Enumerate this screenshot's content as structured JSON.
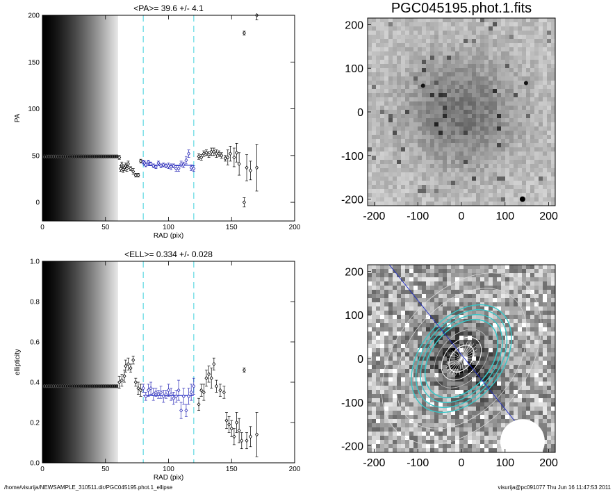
{
  "footer": {
    "left": "/home/visurija/NEWSAMPLE_310511.dir/PGC045195.phot.1_ellipse",
    "right": "visurija@pc091077  Thu Jun 16 11:47:53 2011"
  },
  "chart_data": [
    {
      "id": "pa",
      "type": "scatter",
      "title": "<PA>=  39.6 +/-   4.1",
      "xlabel": "RAD (pix)",
      "ylabel": "PA",
      "xlim": [
        0,
        200
      ],
      "ylim": [
        -20,
        200
      ],
      "xticks": [
        0,
        50,
        100,
        150,
        200
      ],
      "yticks": [
        0,
        50,
        100,
        150,
        200
      ],
      "grid": false,
      "inner_fill_until": 60,
      "inner_value": 49,
      "vlines": [
        80,
        120
      ],
      "fit": {
        "x": [
          80,
          120
        ],
        "y": 39.6
      },
      "points": [
        [
          61,
          48,
          2
        ],
        [
          62,
          36,
          3
        ],
        [
          63,
          40,
          3
        ],
        [
          64,
          35,
          3
        ],
        [
          65,
          37,
          3
        ],
        [
          66,
          39,
          3
        ],
        [
          67,
          36,
          3
        ],
        [
          68,
          41,
          3
        ],
        [
          70,
          36,
          2
        ],
        [
          72,
          33,
          3
        ],
        [
          74,
          29,
          2
        ],
        [
          76,
          29,
          2
        ],
        [
          78,
          44,
          2
        ],
        [
          80,
          43,
          2
        ],
        [
          81,
          42,
          2
        ],
        [
          82,
          40,
          2
        ],
        [
          84,
          43,
          2
        ],
        [
          85,
          41,
          2
        ],
        [
          86,
          41,
          2
        ],
        [
          88,
          39,
          2
        ],
        [
          90,
          38,
          2
        ],
        [
          92,
          42,
          2
        ],
        [
          94,
          39,
          2
        ],
        [
          96,
          40,
          2
        ],
        [
          98,
          39,
          2
        ],
        [
          100,
          39,
          3
        ],
        [
          102,
          38,
          3
        ],
        [
          104,
          39,
          2
        ],
        [
          106,
          36,
          3
        ],
        [
          108,
          36,
          3
        ],
        [
          110,
          41,
          3
        ],
        [
          112,
          40,
          3
        ],
        [
          114,
          45,
          4
        ],
        [
          116,
          52,
          4
        ],
        [
          118,
          37,
          3
        ],
        [
          120,
          36,
          3
        ],
        [
          124,
          49,
          3
        ],
        [
          126,
          48,
          3
        ],
        [
          128,
          52,
          3
        ],
        [
          130,
          53,
          3
        ],
        [
          132,
          51,
          3
        ],
        [
          134,
          54,
          4
        ],
        [
          136,
          54,
          4
        ],
        [
          138,
          52,
          4
        ],
        [
          140,
          52,
          3
        ],
        [
          142,
          50,
          3
        ],
        [
          145,
          47,
          3
        ],
        [
          147,
          48,
          8
        ],
        [
          149,
          52,
          8
        ],
        [
          152,
          48,
          10
        ],
        [
          154,
          53,
          10
        ],
        [
          156,
          41,
          12
        ],
        [
          160,
          0,
          5
        ],
        [
          162,
          37,
          14
        ],
        [
          165,
          34,
          10
        ],
        [
          170,
          37,
          25
        ],
        [
          160,
          181,
          2
        ],
        [
          170,
          200,
          5
        ]
      ]
    },
    {
      "id": "ell",
      "type": "scatter",
      "title": "<ELL>= 0.334 +/-  0.028",
      "xlabel": "RAD (pix)",
      "ylabel": "ellipticity",
      "xlim": [
        0,
        200
      ],
      "ylim": [
        0,
        1.0
      ],
      "xticks": [
        0,
        50,
        100,
        150,
        200
      ],
      "yticks": [
        0.0,
        0.2,
        0.4,
        0.6,
        0.8,
        1.0
      ],
      "grid": false,
      "inner_fill_until": 60,
      "inner_value": 0.38,
      "vlines": [
        80,
        120
      ],
      "fit": {
        "x": [
          80,
          120
        ],
        "y": 0.334
      },
      "points": [
        [
          61,
          0.4,
          0.03
        ],
        [
          63,
          0.41,
          0.03
        ],
        [
          65,
          0.43,
          0.03
        ],
        [
          66,
          0.48,
          0.03
        ],
        [
          68,
          0.49,
          0.03
        ],
        [
          70,
          0.47,
          0.02
        ],
        [
          72,
          0.51,
          0.02
        ],
        [
          74,
          0.4,
          0.02
        ],
        [
          76,
          0.37,
          0.03
        ],
        [
          78,
          0.36,
          0.03
        ],
        [
          80,
          0.37,
          0.02
        ],
        [
          82,
          0.33,
          0.02
        ],
        [
          84,
          0.36,
          0.03
        ],
        [
          86,
          0.37,
          0.03
        ],
        [
          88,
          0.34,
          0.03
        ],
        [
          90,
          0.35,
          0.02
        ],
        [
          92,
          0.34,
          0.02
        ],
        [
          94,
          0.35,
          0.03
        ],
        [
          96,
          0.33,
          0.03
        ],
        [
          98,
          0.34,
          0.02
        ],
        [
          100,
          0.36,
          0.03
        ],
        [
          102,
          0.34,
          0.03
        ],
        [
          104,
          0.32,
          0.03
        ],
        [
          106,
          0.33,
          0.03
        ],
        [
          108,
          0.36,
          0.05
        ],
        [
          110,
          0.26,
          0.04
        ],
        [
          112,
          0.33,
          0.04
        ],
        [
          114,
          0.26,
          0.03
        ],
        [
          116,
          0.33,
          0.04
        ],
        [
          118,
          0.35,
          0.04
        ],
        [
          120,
          0.38,
          0.04
        ],
        [
          124,
          0.29,
          0.03
        ],
        [
          126,
          0.36,
          0.03
        ],
        [
          128,
          0.35,
          0.04
        ],
        [
          130,
          0.42,
          0.04
        ],
        [
          132,
          0.44,
          0.04
        ],
        [
          134,
          0.42,
          0.05
        ],
        [
          136,
          0.49,
          0.03
        ],
        [
          138,
          0.38,
          0.03
        ],
        [
          141,
          0.36,
          0.03
        ],
        [
          144,
          0.35,
          0.03
        ],
        [
          146,
          0.21,
          0.04
        ],
        [
          148,
          0.19,
          0.04
        ],
        [
          150,
          0.17,
          0.04
        ],
        [
          152,
          0.13,
          0.04
        ],
        [
          154,
          0.2,
          0.05
        ],
        [
          156,
          0.16,
          0.06
        ],
        [
          158,
          0.11,
          0.04
        ],
        [
          162,
          0.11,
          0.04
        ],
        [
          165,
          0.13,
          0.05
        ],
        [
          170,
          0.14,
          0.11
        ],
        [
          160,
          0.46,
          0.01
        ]
      ]
    },
    {
      "id": "img1",
      "type": "heatmap",
      "title": "PGC045195.phot.1.fits",
      "xlim": [
        -215,
        215
      ],
      "ylim": [
        -215,
        215
      ],
      "xticks": [
        -200,
        -100,
        0,
        100,
        200
      ],
      "yticks": [
        -200,
        -100,
        0,
        100,
        200
      ]
    },
    {
      "id": "img2",
      "type": "heatmap",
      "title": "",
      "xlim": [
        -215,
        215
      ],
      "ylim": [
        -215,
        215
      ],
      "xticks": [
        -200,
        -100,
        0,
        100,
        200
      ],
      "yticks": [
        -200,
        -100,
        0,
        100,
        200
      ],
      "fit_pa_deg": 39.6,
      "fit_ell": 0.334
    }
  ]
}
